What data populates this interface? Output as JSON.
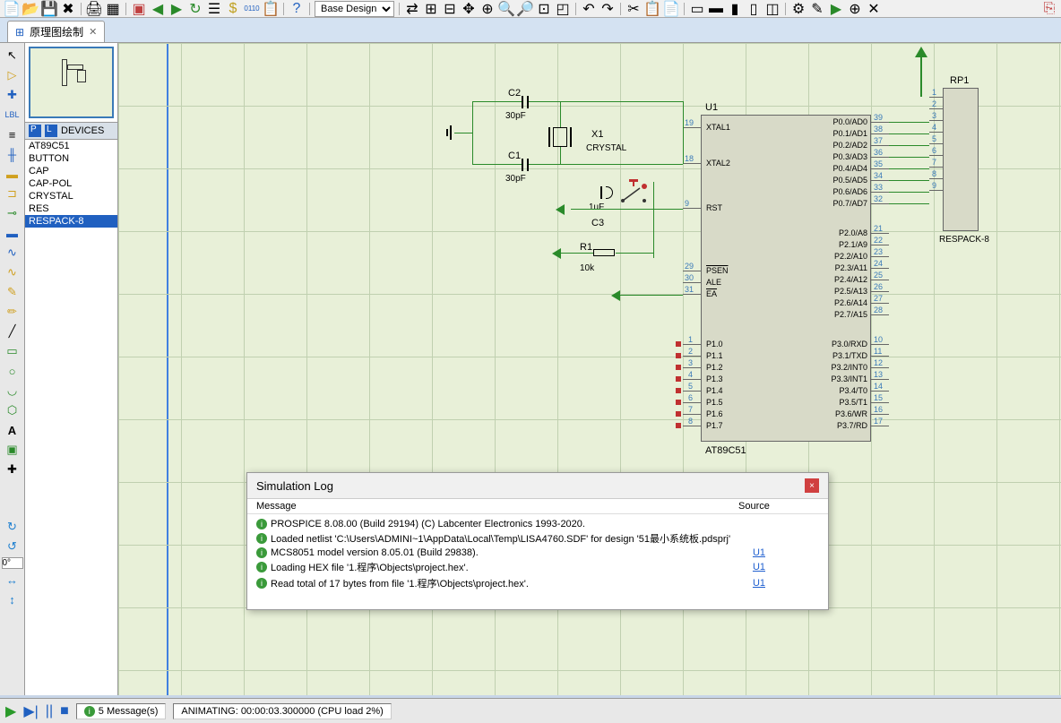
{
  "toolbar": {
    "combo_value": "Base Design"
  },
  "tab": {
    "title": "原理图绘制",
    "icon_color": "#2060c0"
  },
  "devices": {
    "header_label": "DEVICES",
    "items": [
      "AT89C51",
      "BUTTON",
      "CAP",
      "CAP-POL",
      "CRYSTAL",
      "RES",
      "RESPACK-8"
    ],
    "selected_index": 6
  },
  "rotate_value": "0°",
  "schematic": {
    "u1": {
      "ref": "U1",
      "part": "AT89C51",
      "left_pins": [
        {
          "num": "19",
          "name": "XTAL1"
        },
        {
          "num": "18",
          "name": "XTAL2"
        },
        {
          "num": "9",
          "name": "RST"
        },
        {
          "num": "29",
          "name": "PSEN",
          "bar": true
        },
        {
          "num": "30",
          "name": "ALE"
        },
        {
          "num": "31",
          "name": "EA",
          "bar": true
        }
      ],
      "right_pins_top": [
        {
          "num": "39",
          "name": "P0.0/AD0"
        },
        {
          "num": "38",
          "name": "P0.1/AD1"
        },
        {
          "num": "37",
          "name": "P0.2/AD2"
        },
        {
          "num": "36",
          "name": "P0.3/AD3"
        },
        {
          "num": "35",
          "name": "P0.4/AD4"
        },
        {
          "num": "34",
          "name": "P0.5/AD5"
        },
        {
          "num": "33",
          "name": "P0.6/AD6"
        },
        {
          "num": "32",
          "name": "P0.7/AD7"
        }
      ],
      "right_pins_mid": [
        {
          "num": "21",
          "name": "P2.0/A8"
        },
        {
          "num": "22",
          "name": "P2.1/A9"
        },
        {
          "num": "23",
          "name": "P2.2/A10"
        },
        {
          "num": "24",
          "name": "P2.3/A11"
        },
        {
          "num": "25",
          "name": "P2.4/A12"
        },
        {
          "num": "26",
          "name": "P2.5/A13"
        },
        {
          "num": "27",
          "name": "P2.6/A14"
        },
        {
          "num": "28",
          "name": "P2.7/A15"
        }
      ],
      "p1_pins": [
        {
          "num": "1",
          "name": "P1.0"
        },
        {
          "num": "2",
          "name": "P1.1"
        },
        {
          "num": "3",
          "name": "P1.2"
        },
        {
          "num": "4",
          "name": "P1.3"
        },
        {
          "num": "5",
          "name": "P1.4"
        },
        {
          "num": "6",
          "name": "P1.5"
        },
        {
          "num": "7",
          "name": "P1.6"
        },
        {
          "num": "8",
          "name": "P1.7"
        }
      ],
      "p3_pins": [
        {
          "num": "10",
          "name": "P3.0/RXD"
        },
        {
          "num": "11",
          "name": "P3.1/TXD"
        },
        {
          "num": "12",
          "name": "P3.2/INT0"
        },
        {
          "num": "13",
          "name": "P3.3/INT1"
        },
        {
          "num": "14",
          "name": "P3.4/T0"
        },
        {
          "num": "15",
          "name": "P3.5/T1"
        },
        {
          "num": "16",
          "name": "P3.6/WR"
        },
        {
          "num": "17",
          "name": "P3.7/RD"
        }
      ]
    },
    "rp1": {
      "ref": "RP1",
      "part": "RESPACK-8",
      "pins": [
        "1",
        "2",
        "3",
        "4",
        "5",
        "6",
        "7",
        "8",
        "9"
      ]
    },
    "c1": {
      "ref": "C1",
      "val": "30pF"
    },
    "c2": {
      "ref": "C2",
      "val": "30pF"
    },
    "c3": {
      "ref": "C3",
      "val": "1uF"
    },
    "x1": {
      "ref": "X1",
      "val": "CRYSTAL"
    },
    "r1": {
      "ref": "R1",
      "val": "10k"
    }
  },
  "sim_log": {
    "title": "Simulation Log",
    "col_msg": "Message",
    "col_src": "Source",
    "rows": [
      {
        "msg": "PROSPICE 8.08.00 (Build 29194) (C) Labcenter Electronics 1993-2020.",
        "src": ""
      },
      {
        "msg": "Loaded netlist 'C:\\Users\\ADMINI~1\\AppData\\Local\\Temp\\LISA4760.SDF' for design '51最小系统板.pdsprj'",
        "src": ""
      },
      {
        "msg": "MCS8051 model version 8.05.01 (Build 29838).",
        "src": "U1"
      },
      {
        "msg": "Loading HEX file '1.程序\\Objects\\project.hex'.",
        "src": "U1"
      },
      {
        "msg": "Read total of 17 bytes from file '1.程序\\Objects\\project.hex'.",
        "src": "U1"
      }
    ]
  },
  "status": {
    "messages": "5 Message(s)",
    "animating": "ANIMATING: 00:00:03.300000 (CPU load 2%)"
  },
  "colors": {
    "canvas_bg": "#e8f0d8",
    "wire_green": "#2a8a2a",
    "ic_bg": "#d8dac8",
    "pin_num": "#3a7ab8"
  }
}
